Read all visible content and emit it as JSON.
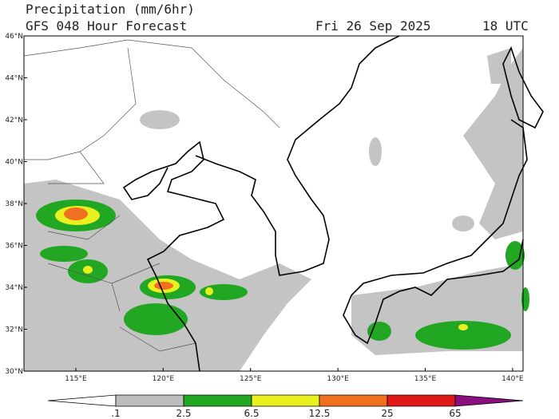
{
  "header": {
    "title": "Precipitation (mm/6hr)",
    "subtitle": "GFS 048 Hour Forecast",
    "valid_date": "Fri 26 Sep 2025",
    "valid_time": "18 UTC"
  },
  "map": {
    "xlim": [
      112.03,
      140.6
    ],
    "ylim": [
      30,
      46
    ],
    "yticks": [
      {
        "value": 30,
        "label": "30°N"
      },
      {
        "value": 32,
        "label": "32°N"
      },
      {
        "value": 34,
        "label": "34°N"
      },
      {
        "value": 36,
        "label": "36°N"
      },
      {
        "value": 38,
        "label": "38°N"
      },
      {
        "value": 40,
        "label": "40°N"
      },
      {
        "value": 42,
        "label": "42°N"
      },
      {
        "value": 44,
        "label": "44°N"
      },
      {
        "value": 46,
        "label": "46°N"
      }
    ],
    "xticks": [
      {
        "value": 115,
        "label": "115°E"
      },
      {
        "value": 120,
        "label": "120°E"
      },
      {
        "value": 125,
        "label": "125°E"
      },
      {
        "value": 130,
        "label": "130°E"
      },
      {
        "value": 135,
        "label": "135°E"
      },
      {
        "value": 140,
        "label": "140°E"
      }
    ]
  },
  "colorbar": {
    "levels": [
      {
        "value": 0.1,
        "label": ".1"
      },
      2.5,
      6.5,
      12.5,
      {
        "value": 25,
        "label": "25"
      },
      65
    ],
    "colors": [
      "#ffffff",
      "#bdbdbd",
      "#22a722",
      "#e8f020",
      "#f07020",
      "#e01818",
      "#8a1080"
    ]
  }
}
